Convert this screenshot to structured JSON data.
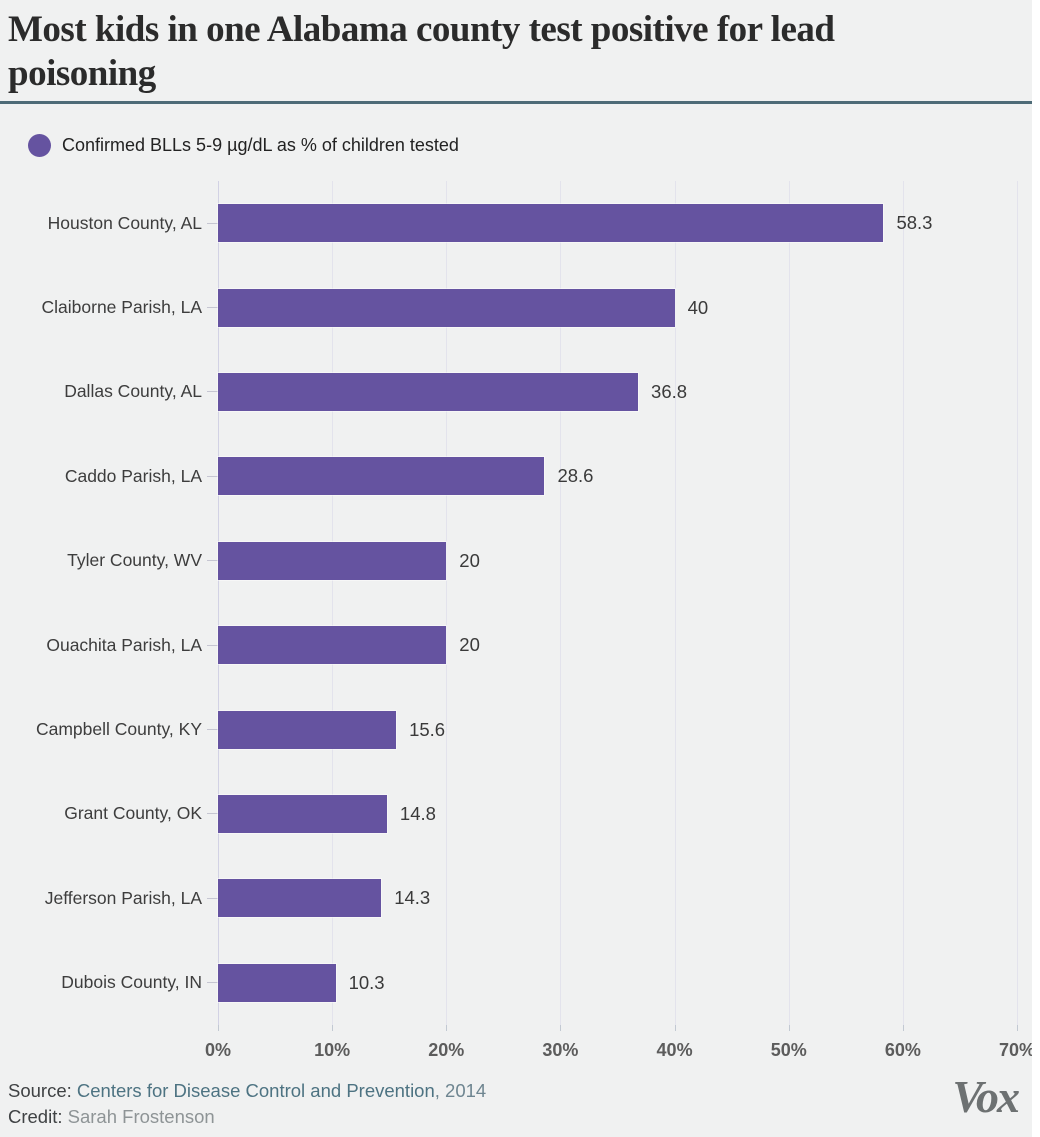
{
  "page": {
    "canvas_background": "#f0f1f1",
    "outer_background": "#ffffff"
  },
  "header": {
    "title": "Most kids in one Alabama county test positive for lead poisoning",
    "rule_color": "#4e6b77"
  },
  "legend": {
    "swatch_color": "#6553a0",
    "label": "Confirmed BLLs 5-9 µg/dL as % of children tested"
  },
  "chart_data": {
    "type": "bar",
    "orientation": "horizontal",
    "title": "Most kids in one Alabama county test positive for lead poisoning",
    "series_label": "Confirmed BLLs 5-9 µg/dL as % of children tested",
    "unit": "%",
    "xlim": [
      0,
      70
    ],
    "x_ticks": [
      "0%",
      "10%",
      "20%",
      "30%",
      "40%",
      "50%",
      "60%",
      "70%"
    ],
    "grid": true,
    "legend_position": "top-left",
    "bar_color": "#6553a0",
    "categories": [
      "Houston County, AL",
      "Claiborne Parish, LA",
      "Dallas County, AL",
      "Caddo Parish, LA",
      "Tyler County, WV",
      "Ouachita Parish, LA",
      "Campbell County, KY",
      "Grant County, OK",
      "Jefferson Parish, LA",
      "Dubois County, IN"
    ],
    "values": [
      58.3,
      40,
      36.8,
      28.6,
      20,
      20,
      15.6,
      14.8,
      14.3,
      10.3
    ],
    "rows": [
      {
        "label": "Houston County, AL",
        "value": 58.3,
        "value_label": "58.3"
      },
      {
        "label": "Claiborne Parish, LA",
        "value": 40,
        "value_label": "40"
      },
      {
        "label": "Dallas County, AL",
        "value": 36.8,
        "value_label": "36.8"
      },
      {
        "label": "Caddo Parish, LA",
        "value": 28.6,
        "value_label": "28.6"
      },
      {
        "label": "Tyler County, WV",
        "value": 20,
        "value_label": "20"
      },
      {
        "label": "Ouachita Parish, LA",
        "value": 20,
        "value_label": "20"
      },
      {
        "label": "Campbell County, KY",
        "value": 15.6,
        "value_label": "15.6"
      },
      {
        "label": "Grant County, OK",
        "value": 14.8,
        "value_label": "14.8"
      },
      {
        "label": "Jefferson Parish, LA",
        "value": 14.3,
        "value_label": "14.3"
      },
      {
        "label": "Dubois County, IN",
        "value": 10.3,
        "value_label": "10.3"
      }
    ]
  },
  "footer": {
    "source_label": "Source:",
    "source_link": "Centers for Disease Control and Prevention",
    "source_suffix": ", 2014",
    "credit_label": "Credit:",
    "credit_name": "Sarah Frostenson",
    "logo_text": "Vox"
  }
}
